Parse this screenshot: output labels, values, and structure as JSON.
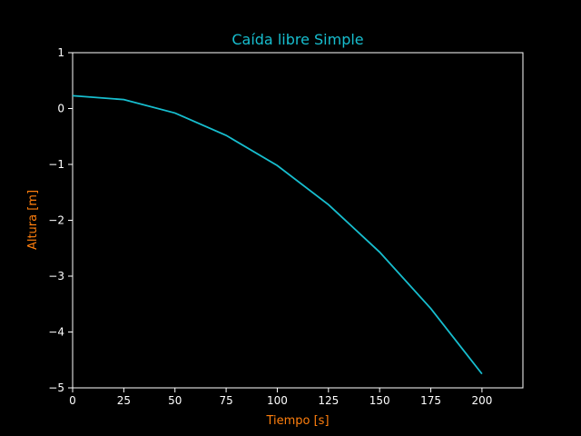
{
  "chart_data": {
    "type": "line",
    "title": "Caída libre Simple",
    "xlabel": "Tiempo [s]",
    "ylabel": "Altura [m]",
    "xlim": [
      0,
      220
    ],
    "ylim": [
      -5,
      1
    ],
    "x_ticks": [
      0,
      25,
      50,
      75,
      100,
      125,
      150,
      175,
      200
    ],
    "y_ticks": [
      1,
      0,
      -1,
      -2,
      -3,
      -4,
      -5
    ],
    "y_tick_labels": [
      "1",
      "0",
      "−1",
      "−2",
      "−3",
      "−4",
      "−5"
    ],
    "grid": false,
    "series": [
      {
        "color": "#17becf",
        "x": [
          0,
          25,
          50,
          75,
          100,
          125,
          150,
          175,
          200
        ],
        "y": [
          0.23,
          0.16,
          -0.08,
          -0.48,
          -1.02,
          -1.72,
          -2.57,
          -3.58,
          -4.75
        ]
      }
    ]
  },
  "colors": {
    "background": "#000000",
    "axes": "#ffffff",
    "title": "#17becf",
    "axis_label": "#ff7f0e",
    "line": "#17becf"
  }
}
